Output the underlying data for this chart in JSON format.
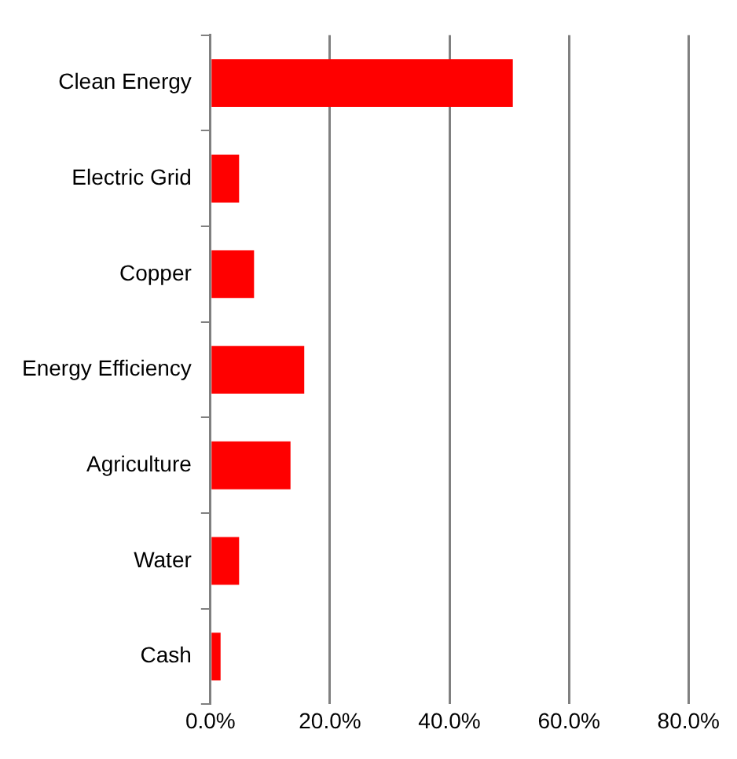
{
  "chart_data": {
    "type": "bar",
    "orientation": "horizontal",
    "categories": [
      "Clean Energy",
      "Electric Grid",
      "Copper",
      "Energy Efficiency",
      "Agriculture",
      "Water",
      "Cash"
    ],
    "values": [
      50.6,
      4.8,
      7.3,
      15.7,
      13.4,
      4.8,
      1.7
    ],
    "color": "#ff0000",
    "xlim": [
      0,
      80
    ],
    "xticks": [
      {
        "value": 0,
        "label": "0.0%"
      },
      {
        "value": 20,
        "label": "20.0%"
      },
      {
        "value": 40,
        "label": "40.0%"
      },
      {
        "value": 60,
        "label": "60.0%"
      },
      {
        "value": 80,
        "label": "80.0%"
      }
    ],
    "grid": "x",
    "legend": false
  }
}
